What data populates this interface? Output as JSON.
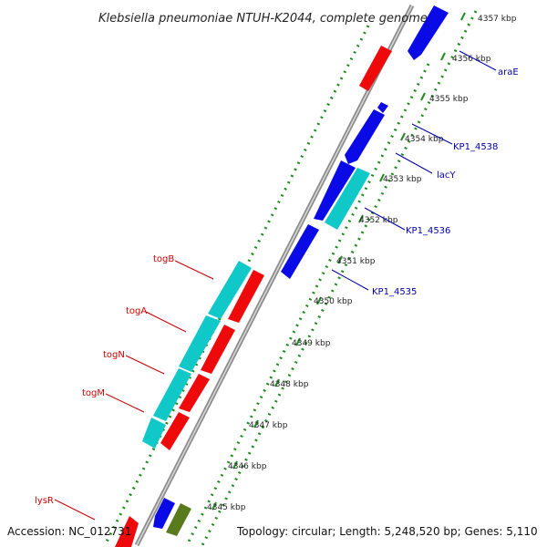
{
  "title": "Klebsiella pneumoniae NTUH-K2044, complete genome",
  "footer": {
    "accession": "Accession: NC_012731",
    "summary": "Topology: circular; Length: 5,248,520 bp; Genes: 5,110"
  },
  "ticks": [
    "4357 kbp",
    "4356 kbp",
    "4355 kbp",
    "4354 kbp",
    "4353 kbp",
    "4352 kbp",
    "4351 kbp",
    "4350 kbp",
    "4349 kbp",
    "4348 kbp",
    "4347 kbp",
    "4346 kbp",
    "4345 kbp"
  ],
  "gene_labels": {
    "right": [
      "araE",
      "KP1_4538",
      "lacY",
      "KP1_4536",
      "KP1_4535"
    ],
    "left": [
      "togB",
      "togA",
      "togN",
      "togM",
      "lysR"
    ]
  },
  "colors": {
    "backbone": "#8c8c8c",
    "blue_gene": "#0a0ae6",
    "red_gene": "#ee0a0a",
    "cyan_gene": "#10c8c8",
    "olive_gene": "#5a7a1e",
    "gc_dashes": "#1e8c1e",
    "right_label": "#0000aa",
    "left_label": "#cc0000"
  }
}
